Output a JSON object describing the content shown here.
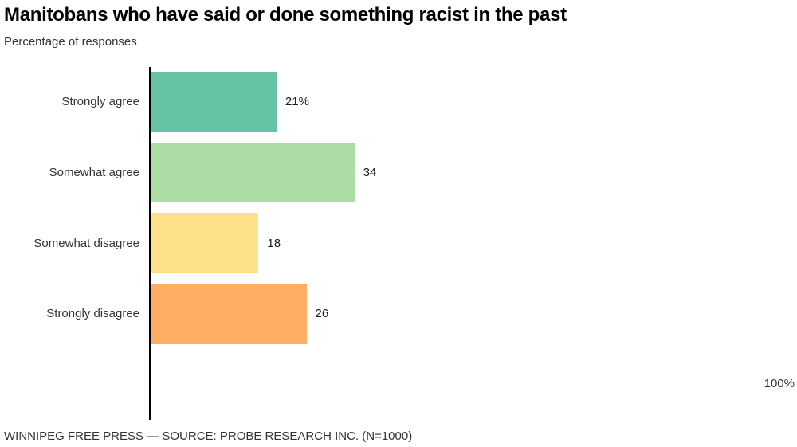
{
  "header": {
    "title": "Manitobans who have said or done something racist in the past",
    "subtitle": "Percentage of responses"
  },
  "footer": {
    "source_line": "WINNIPEG FREE PRESS — SOURCE: PROBE RESEARCH INC. (N=1000)"
  },
  "chart_data": {
    "type": "bar",
    "orientation": "horizontal",
    "title": "Manitobans who have said or done something racist in the past",
    "subtitle": "Percentage of responses",
    "categories": [
      "Strongly agree",
      "Somewhat agree",
      "Somewhat disagree",
      "Strongly disagree"
    ],
    "values": [
      21,
      34,
      18,
      26
    ],
    "value_labels": [
      "21%",
      "34",
      "18",
      "26"
    ],
    "bar_colors": [
      "#66c2a5",
      "#abdda4",
      "#fee08b",
      "#fdae61"
    ],
    "xlim": [
      0,
      100
    ],
    "axis_max_label": "100%",
    "xlabel": "",
    "ylabel": "",
    "grid": false,
    "legend": false,
    "axis_line_color": "#000000"
  }
}
